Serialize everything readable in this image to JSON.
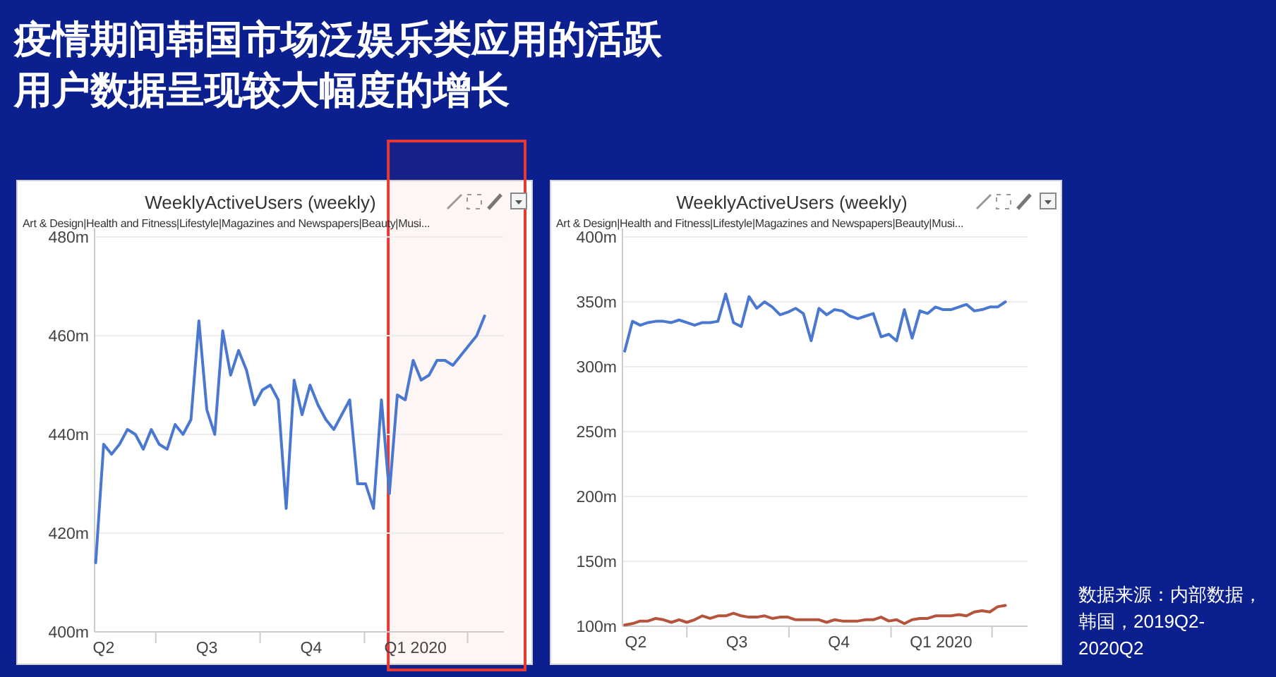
{
  "chart_data": [
    {
      "type": "other",
      "title": "疫情期间韩国市场泛娱乐类应用的活跃用户数据呈现较大幅度的增长",
      "annotations": [
        "数据来源：内部数据，韩国，2019Q2-2020Q2"
      ]
    },
    {
      "type": "line",
      "title": "WeeklyActiveUsers (weekly)",
      "subtitle": "Art & Design|Health and Fitness|Lifestyle|Magazines and Newspapers|Beauty|Musi...",
      "grid": "y",
      "x": [
        "2019-05-09",
        "2019-05-16",
        "2019-05-23",
        "2019-05-30",
        "2019-06-06",
        "2019-06-13",
        "2019-06-20",
        "2019-06-27",
        "2019-07-04",
        "2019-07-11",
        "2019-07-18",
        "2019-07-25",
        "2019-08-01",
        "2019-08-08",
        "2019-08-15",
        "2019-08-22",
        "2019-08-29",
        "2019-09-05",
        "2019-09-12",
        "2019-09-19",
        "2019-09-26",
        "2019-10-03",
        "2019-10-10",
        "2019-10-17",
        "2019-10-24",
        "2019-10-31",
        "2019-11-07",
        "2019-11-14",
        "2019-11-21",
        "2019-11-28",
        "2019-12-05",
        "2019-12-12",
        "2019-12-19",
        "2019-12-26",
        "2020-01-02",
        "2020-01-09",
        "2020-01-16",
        "2020-01-23",
        "2020-01-30",
        "2020-02-06",
        "2020-02-13",
        "2020-02-20",
        "2020-02-27",
        "2020-03-05",
        "2020-03-12",
        "2020-03-19",
        "2020-03-26",
        "2020-04-02",
        "2020-04-09",
        "2020-04-16"
      ],
      "xlim": [
        "2019-05-08",
        "2020-05-03"
      ],
      "xticks": [
        {
          "value": "2019-05-16",
          "label": "Q2"
        },
        {
          "value": "2019-07-01",
          "label": null
        },
        {
          "value": "2019-08-15",
          "label": "Q3"
        },
        {
          "value": "2019-10-01",
          "label": null
        },
        {
          "value": "2019-11-15",
          "label": "Q4"
        },
        {
          "value": "2020-01-01",
          "label": null
        },
        {
          "value": "2020-02-15",
          "label": "Q1 2020"
        },
        {
          "value": "2020-04-01",
          "label": null
        }
      ],
      "ylim": [
        400,
        480
      ],
      "yticks": [
        {
          "value": 400,
          "label": "400m"
        },
        {
          "value": 420,
          "label": "420m"
        },
        {
          "value": 440,
          "label": "440m"
        },
        {
          "value": 460,
          "label": "460m"
        },
        {
          "value": 480,
          "label": "480m"
        }
      ],
      "bands": [
        {
          "axis": "x",
          "from": "2020-01-22",
          "to": "2020-05-03",
          "color": "#e53935"
        }
      ],
      "series": [
        {
          "color": "#4a78d0",
          "values": [
            414,
            438,
            436,
            438,
            441,
            440,
            437,
            441,
            438,
            437,
            442,
            440,
            443,
            463,
            445,
            440,
            461,
            452,
            457,
            453,
            446,
            449,
            450,
            447,
            425,
            451,
            444,
            450,
            446,
            443,
            441,
            444,
            447,
            430,
            430,
            425,
            447,
            428,
            448,
            447,
            455,
            451,
            452,
            455,
            455,
            454,
            456,
            458,
            460,
            464
          ]
        }
      ]
    },
    {
      "type": "line",
      "title": "WeeklyActiveUsers (weekly)",
      "subtitle": "Art & Design|Health and Fitness|Lifestyle|Magazines and Newspapers|Beauty|Musi...",
      "grid": "y",
      "x": [
        "2019-05-06",
        "2019-05-13",
        "2019-05-20",
        "2019-05-27",
        "2019-06-03",
        "2019-06-10",
        "2019-06-17",
        "2019-06-24",
        "2019-07-01",
        "2019-07-08",
        "2019-07-15",
        "2019-07-22",
        "2019-07-29",
        "2019-08-05",
        "2019-08-12",
        "2019-08-19",
        "2019-08-26",
        "2019-09-02",
        "2019-09-09",
        "2019-09-16",
        "2019-09-23",
        "2019-09-30",
        "2019-10-07",
        "2019-10-14",
        "2019-10-21",
        "2019-10-28",
        "2019-11-04",
        "2019-11-11",
        "2019-11-18",
        "2019-11-25",
        "2019-12-02",
        "2019-12-09",
        "2019-12-16",
        "2019-12-23",
        "2019-12-30",
        "2020-01-06",
        "2020-01-13",
        "2020-01-20",
        "2020-01-27",
        "2020-02-03",
        "2020-02-10",
        "2020-02-17",
        "2020-02-24",
        "2020-03-02",
        "2020-03-09",
        "2020-03-16",
        "2020-03-23",
        "2020-03-30",
        "2020-04-06",
        "2020-04-13"
      ],
      "xlim": [
        "2019-05-04",
        "2020-05-03"
      ],
      "xticks": [
        {
          "value": "2019-05-16",
          "label": "Q2"
        },
        {
          "value": "2019-07-01",
          "label": null
        },
        {
          "value": "2019-08-15",
          "label": "Q3"
        },
        {
          "value": "2019-10-01",
          "label": null
        },
        {
          "value": "2019-11-15",
          "label": "Q4"
        },
        {
          "value": "2020-01-01",
          "label": null
        },
        {
          "value": "2020-02-15",
          "label": "Q1 2020"
        },
        {
          "value": "2020-04-01",
          "label": null
        }
      ],
      "ylim": [
        100,
        400
      ],
      "yticks": [
        {
          "value": 100,
          "label": "100m"
        },
        {
          "value": 150,
          "label": "150m"
        },
        {
          "value": 200,
          "label": "200m"
        },
        {
          "value": 250,
          "label": "250m"
        },
        {
          "value": 300,
          "label": "300m"
        },
        {
          "value": 350,
          "label": "350m"
        },
        {
          "value": 400,
          "label": "400m"
        }
      ],
      "series": [
        {
          "color": "#4a78d0",
          "values": [
            312,
            335,
            332,
            334,
            335,
            335,
            334,
            336,
            334,
            332,
            334,
            334,
            335,
            356,
            334,
            331,
            354,
            345,
            350,
            346,
            340,
            342,
            345,
            341,
            320,
            345,
            340,
            344,
            343,
            339,
            337,
            339,
            341,
            323,
            325,
            320,
            344,
            322,
            343,
            341,
            346,
            344,
            344,
            346,
            348,
            343,
            344,
            346,
            346,
            350
          ]
        },
        {
          "color": "#b5533c",
          "values": [
            101,
            102,
            104,
            104,
            106,
            105,
            103,
            105,
            103,
            105,
            108,
            106,
            108,
            108,
            110,
            108,
            107,
            107,
            108,
            106,
            107,
            107,
            105,
            105,
            105,
            105,
            103,
            105,
            104,
            104,
            104,
            105,
            105,
            107,
            104,
            105,
            102,
            105,
            106,
            106,
            108,
            108,
            108,
            109,
            108,
            111,
            112,
            111,
            115,
            116
          ]
        }
      ]
    }
  ]
}
